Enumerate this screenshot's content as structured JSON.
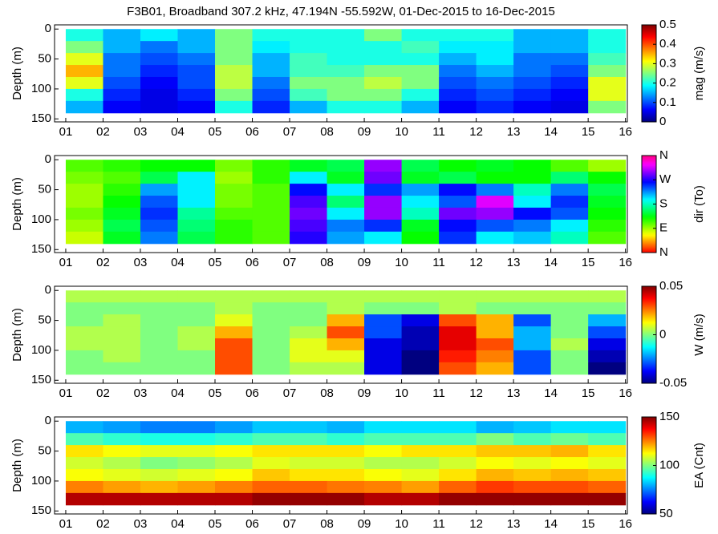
{
  "chart_data": [
    {
      "type": "heatmap",
      "title": "F3B01, Broadband 307.2 kHz, 47.194N -55.592W, 01-Dec-2015 to 16-Dec-2015",
      "ylabel": "Depth (m)",
      "xlim": [
        0.7,
        16.05
      ],
      "ylim": [
        155,
        -7
      ],
      "yticks": [
        0,
        50,
        100,
        150
      ],
      "xticks": [
        {
          "value": 1,
          "label": "01"
        },
        {
          "value": 2,
          "label": "02"
        },
        {
          "value": 3,
          "label": "03"
        },
        {
          "value": 4,
          "label": "04"
        },
        {
          "value": 5,
          "label": "05"
        },
        {
          "value": 6,
          "label": "06"
        },
        {
          "value": 7,
          "label": "07"
        },
        {
          "value": 8,
          "label": "08"
        },
        {
          "value": 9,
          "label": "09"
        },
        {
          "value": 10,
          "label": "10"
        },
        {
          "value": 11,
          "label": "11"
        },
        {
          "value": 12,
          "label": "12"
        },
        {
          "value": 13,
          "label": "13"
        },
        {
          "value": 14,
          "label": "14"
        },
        {
          "value": 15,
          "label": "15"
        },
        {
          "value": 16,
          "label": "16"
        }
      ],
      "x": [
        1.5,
        2.5,
        3.5,
        4.5,
        5.5,
        6.5,
        7.5,
        8.5,
        9.5,
        10.5,
        11.5,
        12.5,
        13.5,
        14.5,
        15.5
      ],
      "y": [
        10,
        30,
        50,
        70,
        90,
        110,
        130
      ],
      "z": [
        [
          0.2,
          0.15,
          0.18,
          0.15,
          0.25,
          0.2,
          0.2,
          0.2,
          0.25,
          0.2,
          0.2,
          0.2,
          0.15,
          0.15,
          0.2
        ],
        [
          0.25,
          0.15,
          0.12,
          0.15,
          0.25,
          0.18,
          0.2,
          0.2,
          0.2,
          0.22,
          0.18,
          0.18,
          0.15,
          0.15,
          0.2
        ],
        [
          0.3,
          0.12,
          0.1,
          0.12,
          0.25,
          0.15,
          0.22,
          0.2,
          0.2,
          0.2,
          0.15,
          0.18,
          0.12,
          0.12,
          0.22
        ],
        [
          0.35,
          0.12,
          0.08,
          0.1,
          0.28,
          0.15,
          0.22,
          0.22,
          0.25,
          0.25,
          0.12,
          0.15,
          0.12,
          0.1,
          0.25
        ],
        [
          0.3,
          0.1,
          0.06,
          0.1,
          0.28,
          0.12,
          0.25,
          0.25,
          0.28,
          0.25,
          0.1,
          0.12,
          0.1,
          0.08,
          0.3
        ],
        [
          0.2,
          0.08,
          0.05,
          0.08,
          0.25,
          0.1,
          0.22,
          0.25,
          0.25,
          0.2,
          0.08,
          0.1,
          0.08,
          0.06,
          0.3
        ],
        [
          0.15,
          0.06,
          0.05,
          0.06,
          0.2,
          0.08,
          0.15,
          0.2,
          0.2,
          0.15,
          0.06,
          0.08,
          0.06,
          0.05,
          0.25
        ]
      ],
      "colorbar": {
        "label": "mag (m/s)",
        "colormap": "jet",
        "lim": [
          0,
          0.5
        ],
        "ticks": [
          0,
          0.1,
          0.2,
          0.3,
          0.4,
          0.5
        ]
      }
    },
    {
      "type": "heatmap",
      "ylabel": "Depth (m)",
      "xlim": [
        0.7,
        16.05
      ],
      "ylim": [
        155,
        -7
      ],
      "yticks": [
        0,
        50,
        100,
        150
      ],
      "xticks": [
        {
          "value": 1,
          "label": "01"
        },
        {
          "value": 2,
          "label": "02"
        },
        {
          "value": 3,
          "label": "03"
        },
        {
          "value": 4,
          "label": "04"
        },
        {
          "value": 5,
          "label": "05"
        },
        {
          "value": 6,
          "label": "06"
        },
        {
          "value": 7,
          "label": "07"
        },
        {
          "value": 8,
          "label": "08"
        },
        {
          "value": 9,
          "label": "09"
        },
        {
          "value": 10,
          "label": "10"
        },
        {
          "value": 11,
          "label": "11"
        },
        {
          "value": 12,
          "label": "12"
        },
        {
          "value": 13,
          "label": "13"
        },
        {
          "value": 14,
          "label": "14"
        },
        {
          "value": 15,
          "label": "15"
        },
        {
          "value": 16,
          "label": "16"
        }
      ],
      "x": [
        1.5,
        2.5,
        3.5,
        4.5,
        5.5,
        6.5,
        7.5,
        8.5,
        9.5,
        10.5,
        11.5,
        12.5,
        13.5,
        14.5,
        15.5
      ],
      "y": [
        10,
        30,
        50,
        70,
        90,
        110,
        130
      ],
      "z": [
        [
          110,
          120,
          130,
          130,
          100,
          120,
          140,
          150,
          300,
          150,
          130,
          140,
          130,
          110,
          90
        ],
        [
          100,
          110,
          150,
          200,
          90,
          120,
          200,
          140,
          290,
          140,
          150,
          130,
          130,
          160,
          130
        ],
        [
          90,
          120,
          220,
          200,
          100,
          110,
          260,
          200,
          250,
          220,
          260,
          230,
          180,
          230,
          150
        ],
        [
          90,
          130,
          240,
          200,
          100,
          110,
          280,
          160,
          300,
          200,
          240,
          320,
          200,
          250,
          140
        ],
        [
          100,
          140,
          250,
          170,
          110,
          110,
          290,
          200,
          300,
          180,
          290,
          300,
          260,
          240,
          130
        ],
        [
          90,
          150,
          240,
          160,
          120,
          110,
          280,
          230,
          250,
          140,
          260,
          240,
          230,
          200,
          120
        ],
        [
          80,
          140,
          230,
          150,
          120,
          110,
          270,
          220,
          200,
          130,
          250,
          200,
          210,
          180,
          110
        ]
      ],
      "colorbar": {
        "label": "dir (To)",
        "colormap": "hsv",
        "lim": [
          0,
          360
        ],
        "ticks": [
          {
            "value": 0,
            "label": "N"
          },
          {
            "value": 90,
            "label": "E"
          },
          {
            "value": 180,
            "label": "S"
          },
          {
            "value": 270,
            "label": "W"
          },
          {
            "value": 360,
            "label": "N"
          }
        ]
      }
    },
    {
      "type": "heatmap",
      "ylabel": "Depth (m)",
      "xlim": [
        0.7,
        16.05
      ],
      "ylim": [
        155,
        -7
      ],
      "yticks": [
        0,
        50,
        100,
        150
      ],
      "xticks": [
        {
          "value": 1,
          "label": "01"
        },
        {
          "value": 2,
          "label": "02"
        },
        {
          "value": 3,
          "label": "03"
        },
        {
          "value": 4,
          "label": "04"
        },
        {
          "value": 5,
          "label": "05"
        },
        {
          "value": 6,
          "label": "06"
        },
        {
          "value": 7,
          "label": "07"
        },
        {
          "value": 8,
          "label": "08"
        },
        {
          "value": 9,
          "label": "09"
        },
        {
          "value": 10,
          "label": "10"
        },
        {
          "value": 11,
          "label": "11"
        },
        {
          "value": 12,
          "label": "12"
        },
        {
          "value": 13,
          "label": "13"
        },
        {
          "value": 14,
          "label": "14"
        },
        {
          "value": 15,
          "label": "15"
        },
        {
          "value": 16,
          "label": "16"
        }
      ],
      "x": [
        1.5,
        2.5,
        3.5,
        4.5,
        5.5,
        6.5,
        7.5,
        8.5,
        9.5,
        10.5,
        11.5,
        12.5,
        13.5,
        14.5,
        15.5
      ],
      "y": [
        10,
        30,
        50,
        70,
        90,
        110,
        130
      ],
      "z": [
        [
          0.005,
          0.005,
          0.005,
          0.005,
          0.005,
          0.005,
          0.005,
          0.005,
          0.005,
          0.005,
          0.005,
          0.005,
          0.005,
          0.005,
          0.005
        ],
        [
          0,
          0,
          0,
          0,
          0.005,
          0,
          0,
          0.005,
          0,
          0,
          0.005,
          0,
          0,
          0,
          0
        ],
        [
          0,
          0.005,
          0,
          0,
          0.01,
          0,
          0,
          0.02,
          -0.03,
          -0.04,
          0.03,
          0.02,
          -0.03,
          0,
          -0.02
        ],
        [
          0.005,
          0.005,
          0,
          0.005,
          0.02,
          0,
          0.005,
          0.03,
          -0.03,
          -0.045,
          0.04,
          0.02,
          -0.02,
          0,
          -0.03
        ],
        [
          0.005,
          0.005,
          0,
          0.005,
          0.03,
          0,
          0.01,
          0.02,
          -0.04,
          -0.045,
          0.04,
          0.03,
          -0.02,
          0.005,
          -0.04
        ],
        [
          0,
          0.005,
          0,
          0,
          0.03,
          0,
          0.01,
          0.01,
          -0.04,
          -0.05,
          0.035,
          0.025,
          -0.03,
          0,
          -0.045
        ],
        [
          0,
          0,
          0,
          0,
          0.03,
          0,
          0.005,
          0.005,
          -0.04,
          -0.05,
          0.03,
          0.02,
          -0.03,
          0,
          -0.05
        ]
      ],
      "colorbar": {
        "label": "W (m/s)",
        "colormap": "jet",
        "lim": [
          -0.05,
          0.05
        ],
        "ticks": [
          -0.05,
          0,
          0.05
        ]
      }
    },
    {
      "type": "heatmap",
      "ylabel": "Depth (m)",
      "xlim": [
        0.7,
        16.05
      ],
      "ylim": [
        155,
        -7
      ],
      "yticks": [
        0,
        50,
        100,
        150
      ],
      "xticks": [
        {
          "value": 1,
          "label": "01"
        },
        {
          "value": 2,
          "label": "02"
        },
        {
          "value": 3,
          "label": "03"
        },
        {
          "value": 4,
          "label": "04"
        },
        {
          "value": 5,
          "label": "05"
        },
        {
          "value": 6,
          "label": "06"
        },
        {
          "value": 7,
          "label": "07"
        },
        {
          "value": 8,
          "label": "08"
        },
        {
          "value": 9,
          "label": "09"
        },
        {
          "value": 10,
          "label": "10"
        },
        {
          "value": 11,
          "label": "11"
        },
        {
          "value": 12,
          "label": "12"
        },
        {
          "value": 13,
          "label": "13"
        },
        {
          "value": 14,
          "label": "14"
        },
        {
          "value": 15,
          "label": "15"
        },
        {
          "value": 16,
          "label": "16"
        }
      ],
      "x": [
        1.5,
        2.5,
        3.5,
        4.5,
        5.5,
        6.5,
        7.5,
        8.5,
        9.5,
        10.5,
        11.5,
        12.5,
        13.5,
        14.5,
        15.5
      ],
      "y": [
        10,
        30,
        50,
        70,
        90,
        110,
        130
      ],
      "z": [
        [
          80,
          78,
          75,
          75,
          78,
          82,
          82,
          80,
          85,
          85,
          85,
          80,
          82,
          85,
          85
        ],
        [
          95,
          92,
          90,
          90,
          92,
          95,
          95,
          92,
          95,
          95,
          95,
          100,
          95,
          98,
          95
        ],
        [
          115,
          112,
          110,
          110,
          112,
          115,
          115,
          115,
          112,
          115,
          115,
          118,
          118,
          120,
          115
        ],
        [
          108,
          105,
          100,
          102,
          105,
          110,
          108,
          108,
          105,
          105,
          108,
          112,
          110,
          112,
          110
        ],
        [
          112,
          110,
          108,
          110,
          112,
          118,
          115,
          115,
          112,
          110,
          115,
          120,
          118,
          120,
          118
        ],
        [
          125,
          122,
          120,
          122,
          125,
          128,
          128,
          126,
          125,
          122,
          128,
          132,
          130,
          130,
          128
        ],
        [
          145,
          145,
          145,
          145,
          145,
          148,
          148,
          148,
          145,
          145,
          148,
          148,
          148,
          148,
          148
        ]
      ],
      "colorbar": {
        "label": "EA (Cnt)",
        "colormap": "jet",
        "lim": [
          50,
          150
        ],
        "ticks": [
          50,
          100,
          150
        ]
      }
    }
  ]
}
